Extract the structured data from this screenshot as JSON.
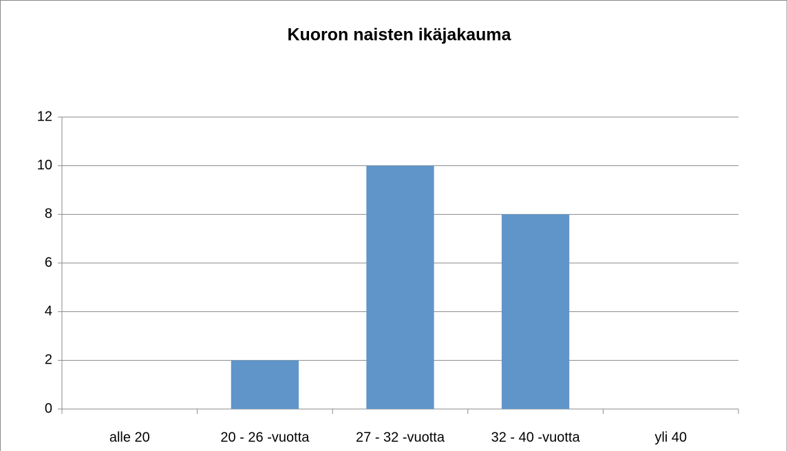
{
  "chart_data": {
    "type": "bar",
    "title": "Kuoron naisten ikäjakauma",
    "categories": [
      "alle 20",
      "20 - 26 -vuotta",
      "27 - 32 -vuotta",
      "32 - 40 -vuotta",
      "yli 40"
    ],
    "values": [
      0,
      2,
      10,
      8,
      0
    ],
    "color": "#5f95c9",
    "ylim": [
      0,
      12
    ],
    "yticks": [
      0,
      2,
      4,
      6,
      8,
      10,
      12
    ],
    "grid": true
  }
}
